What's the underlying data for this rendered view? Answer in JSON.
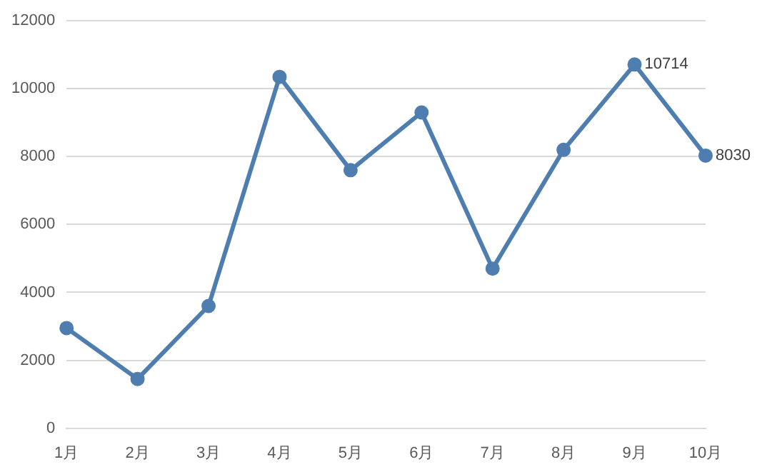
{
  "chart_data": {
    "type": "line",
    "categories": [
      "1月",
      "2月",
      "3月",
      "4月",
      "5月",
      "6月",
      "7月",
      "8月",
      "9月",
      "10月"
    ],
    "values": [
      2950,
      1450,
      3600,
      10350,
      7600,
      9300,
      4700,
      8200,
      10714,
      8030
    ],
    "value_labels": [
      null,
      null,
      null,
      null,
      null,
      null,
      null,
      null,
      "10714",
      "8030"
    ],
    "color": "#4e7db0",
    "ylim": [
      0,
      12000
    ],
    "yticks": [
      0,
      2000,
      4000,
      6000,
      8000,
      10000,
      12000
    ],
    "grid": "y",
    "marker": "circle",
    "line_style": "solid"
  }
}
